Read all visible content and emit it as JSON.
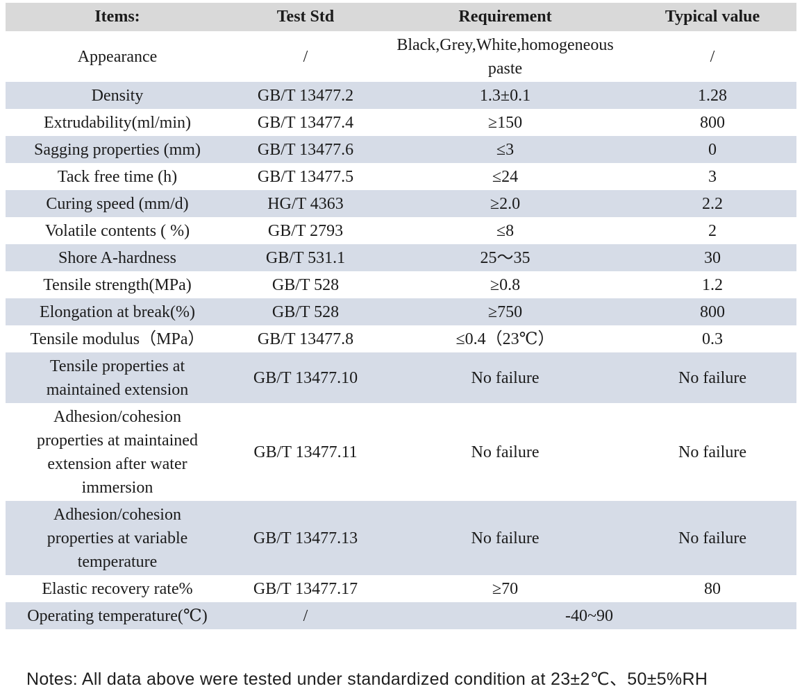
{
  "colors": {
    "header_bg": "#d9d9d9",
    "alt_row_bg": "#d6dce7",
    "text": "#1b1b1b"
  },
  "table": {
    "headers": [
      "Items:",
      "Test Std",
      "Requirement",
      "Typical value"
    ],
    "rows": [
      {
        "item": "Appearance",
        "std": "/",
        "req": "Black,Grey,White,homogeneous paste",
        "val": "/",
        "shade": "white"
      },
      {
        "item": "Density",
        "std": "GB/T 13477.2",
        "req": "1.3±0.1",
        "val": "1.28",
        "shade": "blue"
      },
      {
        "item": "Extrudability(ml/min)",
        "std": "GB/T 13477.4",
        "req": "≥150",
        "val": "800",
        "shade": "white"
      },
      {
        "item": "Sagging properties (mm)",
        "std": "GB/T 13477.6",
        "req": "≤3",
        "val": "0",
        "shade": "blue"
      },
      {
        "item": "Tack free time (h)",
        "std": "GB/T 13477.5",
        "req": "≤24",
        "val": "3",
        "shade": "white"
      },
      {
        "item": "Curing speed (mm/d)",
        "std": "HG/T 4363",
        "req": "≥2.0",
        "val": "2.2",
        "shade": "blue"
      },
      {
        "item": "Volatile contents ( %)",
        "std": "GB/T 2793",
        "req": "≤8",
        "val": "2",
        "shade": "white"
      },
      {
        "item": "Shore A-hardness",
        "std": "GB/T 531.1",
        "req": "25～35",
        "val": "30",
        "shade": "blue"
      },
      {
        "item": "Tensile strength(MPa)",
        "std": "GB/T 528",
        "req": "≥0.8",
        "val": "1.2",
        "shade": "white"
      },
      {
        "item": "Elongation at break(%)",
        "std": "GB/T 528",
        "req": "≥750",
        "val": "800",
        "shade": "blue"
      },
      {
        "item": "Tensile modulus（MPa）",
        "std": "GB/T 13477.8",
        "req": "≤0.4（23℃）",
        "val": "0.3",
        "shade": "white"
      },
      {
        "item": "Tensile properties at maintained extension",
        "std": "GB/T 13477.10",
        "req": "No failure",
        "val": "No failure",
        "shade": "blue"
      },
      {
        "item": "Adhesion/cohesion properties at maintained extension after water immersion",
        "std": "GB/T 13477.11",
        "req": "No failure",
        "val": "No failure",
        "shade": "white"
      },
      {
        "item": "Adhesion/cohesion properties at variable temperature",
        "std": "GB/T 13477.13",
        "req": "No failure",
        "val": "No failure",
        "shade": "blue"
      },
      {
        "item": "Elastic recovery rate%",
        "std": "GB/T 13477.17",
        "req": "≥70",
        "val": "80",
        "shade": "white"
      },
      {
        "item": "Operating temperature(℃)",
        "std": "/",
        "req_span": "-40~90",
        "shade": "blue"
      }
    ]
  },
  "notes": "Notes: All data above were tested under standardized condition at 23±2℃、50±5%RH"
}
